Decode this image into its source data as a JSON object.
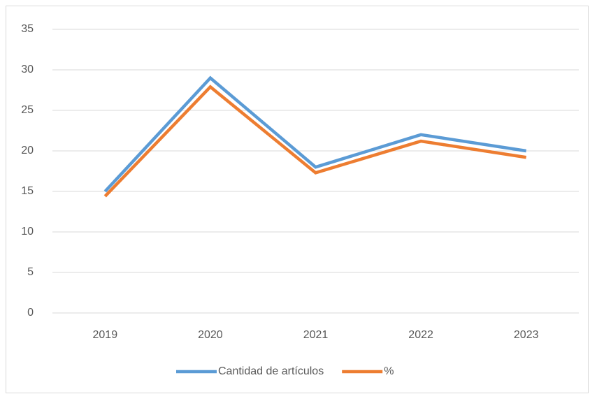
{
  "chart_data": {
    "type": "line",
    "categories": [
      "2019",
      "2020",
      "2021",
      "2022",
      "2023"
    ],
    "series": [
      {
        "name": "Cantidad de artículos",
        "color": "#5b9bd5",
        "values": [
          15,
          29,
          18,
          22,
          20
        ]
      },
      {
        "name": "%",
        "color": "#ed7d31",
        "values": [
          14.4,
          27.9,
          17.3,
          21.2,
          19.2
        ]
      }
    ],
    "ylim": [
      0,
      35
    ],
    "yticks": [
      0,
      5,
      10,
      15,
      20,
      25,
      30,
      35
    ],
    "grid": true,
    "legend": "bottom"
  }
}
